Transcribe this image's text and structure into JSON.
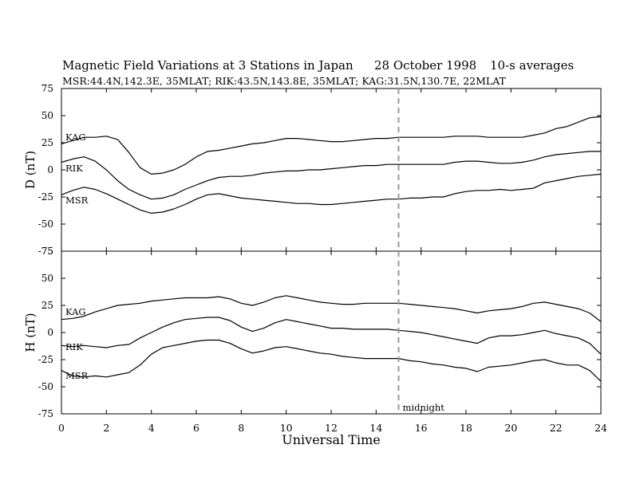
{
  "header": {
    "title": "Magnetic Field Variations at 3 Stations in Japan",
    "date": "28  October 1998",
    "averaging": "10-s averages",
    "subtitle": "MSR:44.4N,142.3E, 35MLAT;   RIK:43.5N,143.8E, 35MLAT;   KAG:31.5N,130.7E, 22MLAT"
  },
  "chart_data": [
    {
      "type": "line",
      "panel": "top",
      "ylabel": "D (nT)",
      "ylim": [
        -75,
        75
      ],
      "yticks": [
        -75,
        -50,
        -25,
        0,
        25,
        50,
        75
      ],
      "xlim": [
        0,
        24
      ],
      "x": [
        0,
        0.5,
        1,
        1.5,
        2,
        2.5,
        3,
        3.5,
        4,
        4.5,
        5,
        5.5,
        6,
        6.5,
        7,
        7.5,
        8,
        8.5,
        9,
        9.5,
        10,
        10.5,
        11,
        11.5,
        12,
        12.5,
        13,
        13.5,
        14,
        14.5,
        15,
        15.5,
        16,
        16.5,
        17,
        17.5,
        18,
        18.5,
        19,
        19.5,
        20,
        20.5,
        21,
        21.5,
        22,
        22.5,
        23,
        23.5,
        24
      ],
      "series": [
        {
          "name": "KAG",
          "values": [
            24,
            27,
            30,
            30,
            31,
            28,
            16,
            2,
            -4,
            -3,
            0,
            5,
            12,
            17,
            18,
            20,
            22,
            24,
            25,
            27,
            29,
            29,
            28,
            27,
            26,
            26,
            27,
            28,
            29,
            29,
            30,
            30,
            30,
            30,
            30,
            31,
            31,
            31,
            30,
            30,
            30,
            30,
            32,
            34,
            38,
            40,
            44,
            48,
            49
          ]
        },
        {
          "name": "RIK",
          "values": [
            7,
            10,
            12,
            8,
            0,
            -10,
            -18,
            -23,
            -27,
            -26,
            -23,
            -18,
            -14,
            -10,
            -7,
            -6,
            -6,
            -5,
            -3,
            -2,
            -1,
            -1,
            0,
            0,
            1,
            2,
            3,
            4,
            4,
            5,
            5,
            5,
            5,
            5,
            5,
            7,
            8,
            8,
            7,
            6,
            6,
            7,
            9,
            12,
            14,
            15,
            16,
            17,
            17
          ]
        },
        {
          "name": "MSR",
          "values": [
            -23,
            -19,
            -16,
            -18,
            -22,
            -27,
            -32,
            -37,
            -40,
            -39,
            -36,
            -32,
            -27,
            -23,
            -22,
            -24,
            -26,
            -27,
            -28,
            -29,
            -30,
            -31,
            -31,
            -32,
            -32,
            -31,
            -30,
            -29,
            -28,
            -27,
            -27,
            -26,
            -26,
            -25,
            -25,
            -22,
            -20,
            -19,
            -19,
            -18,
            -19,
            -18,
            -17,
            -12,
            -10,
            -8,
            -6,
            -5,
            -4
          ]
        }
      ]
    },
    {
      "type": "line",
      "panel": "bottom",
      "ylabel": "H (nT)",
      "ylim": [
        -75,
        75
      ],
      "yticks": [
        -75,
        -50,
        -25,
        0,
        25,
        50,
        75
      ],
      "xlim": [
        0,
        24
      ],
      "xlabel": "Universal Time",
      "xticks": [
        0,
        2,
        4,
        6,
        8,
        10,
        12,
        14,
        16,
        18,
        20,
        22,
        24
      ],
      "x": [
        0,
        0.5,
        1,
        1.5,
        2,
        2.5,
        3,
        3.5,
        4,
        4.5,
        5,
        5.5,
        6,
        6.5,
        7,
        7.5,
        8,
        8.5,
        9,
        9.5,
        10,
        10.5,
        11,
        11.5,
        12,
        12.5,
        13,
        13.5,
        14,
        14.5,
        15,
        15.5,
        16,
        16.5,
        17,
        17.5,
        18,
        18.5,
        19,
        19.5,
        20,
        20.5,
        21,
        21.5,
        22,
        22.5,
        23,
        23.5,
        24
      ],
      "series": [
        {
          "name": "KAG",
          "values": [
            12,
            13,
            15,
            19,
            22,
            25,
            26,
            27,
            29,
            30,
            31,
            32,
            32,
            32,
            33,
            31,
            27,
            25,
            28,
            32,
            34,
            32,
            30,
            28,
            27,
            26,
            26,
            27,
            27,
            27,
            27,
            26,
            25,
            24,
            23,
            22,
            20,
            18,
            20,
            21,
            22,
            24,
            27,
            28,
            26,
            24,
            22,
            18,
            10
          ]
        },
        {
          "name": "RIK",
          "values": [
            -12,
            -13,
            -12,
            -13,
            -14,
            -12,
            -11,
            -5,
            0,
            5,
            9,
            12,
            13,
            14,
            14,
            11,
            5,
            1,
            4,
            9,
            12,
            10,
            8,
            6,
            4,
            4,
            3,
            3,
            3,
            3,
            2,
            1,
            0,
            -2,
            -4,
            -6,
            -8,
            -10,
            -5,
            -3,
            -3,
            -2,
            0,
            2,
            -1,
            -3,
            -5,
            -10,
            -20
          ]
        },
        {
          "name": "MSR",
          "values": [
            -35,
            -40,
            -41,
            -40,
            -41,
            -39,
            -37,
            -30,
            -20,
            -14,
            -12,
            -10,
            -8,
            -7,
            -7,
            -10,
            -15,
            -19,
            -17,
            -14,
            -13,
            -15,
            -17,
            -19,
            -20,
            -22,
            -23,
            -24,
            -24,
            -24,
            -24,
            -26,
            -27,
            -29,
            -30,
            -32,
            -33,
            -36,
            -32,
            -31,
            -30,
            -28,
            -26,
            -25,
            -28,
            -30,
            -30,
            -35,
            -45
          ]
        }
      ]
    }
  ],
  "annotations": {
    "marker_x": 15,
    "marker_label": "midnight"
  }
}
